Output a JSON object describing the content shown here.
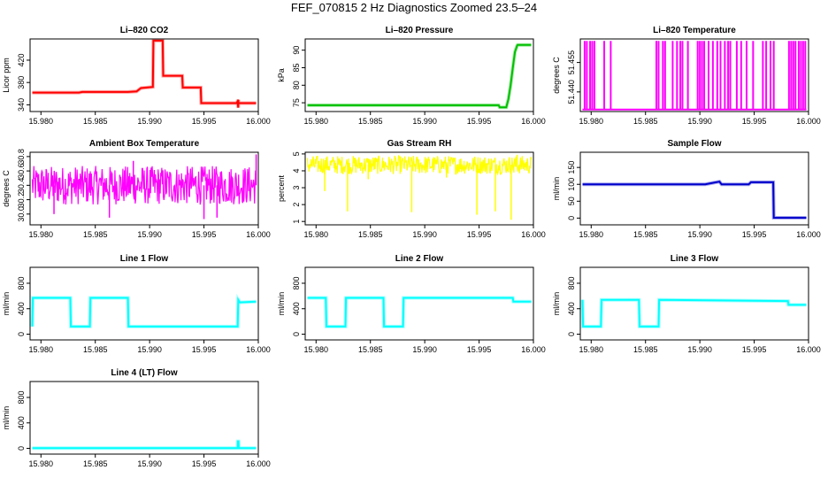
{
  "page_title": "FEF_070815  2 Hz Diagnostics Zoomed 23.5–24",
  "chart_data": [
    {
      "id": "co2",
      "type": "line",
      "title": "Li–820 CO2",
      "ylabel": "Licor ppm",
      "color": "#ff0000",
      "xlim": [
        15.979,
        16.0
      ],
      "ylim": [
        328,
        458
      ],
      "xticks": [
        "15.980",
        "15.985",
        "15.990",
        "15.995",
        "16.000"
      ],
      "yticks": [
        340,
        380,
        420
      ],
      "series": [
        {
          "x": [
            15.9792,
            15.9835,
            15.9838,
            15.988,
            15.9888,
            15.9892,
            15.9903,
            15.99035,
            15.9912,
            15.99125,
            15.993,
            15.99305,
            15.9947,
            15.99475,
            15.9981,
            15.99815,
            15.99818,
            15.998,
            15.9998
          ],
          "y": [
            362,
            362,
            363,
            363,
            364,
            370,
            372,
            455,
            455,
            392,
            392,
            371,
            371,
            343,
            343,
            335,
            349,
            343,
            343
          ]
        }
      ]
    },
    {
      "id": "pressure",
      "type": "line",
      "title": "Li–820 Pressure",
      "ylabel": "kPa",
      "color": "#00c000",
      "xlim": [
        15.979,
        16.0
      ],
      "ylim": [
        72.5,
        93.2
      ],
      "xticks": [
        "15.980",
        "15.985",
        "15.990",
        "15.995",
        "16.000"
      ],
      "yticks": [
        75,
        80,
        85,
        90
      ],
      "series": [
        {
          "x": [
            15.9792,
            15.9968,
            15.9969,
            15.9975,
            15.9977,
            15.9979,
            15.9981,
            15.9983,
            15.9985,
            15.99855,
            15.9998
          ],
          "y": [
            74.3,
            74.3,
            73.7,
            73.7,
            76,
            80,
            85,
            89.5,
            91.3,
            91.5,
            91.5
          ]
        }
      ]
    },
    {
      "id": "temperature",
      "type": "spikes",
      "title": "Li–820 Temperature",
      "ylabel": "degrees C",
      "color": "#ff00ff",
      "xlim": [
        15.979,
        16.0
      ],
      "ylim": [
        51.43,
        51.467
      ],
      "xticks": [
        "15.980",
        "15.985",
        "15.990",
        "15.995",
        "16.000"
      ],
      "yticks": [
        51.44,
        51.455
      ],
      "baseline": 51.431,
      "spike_top": 51.466,
      "spikes_x": [
        15.9794,
        15.9796,
        15.9799,
        15.9801,
        15.9803,
        15.9812,
        15.9818,
        15.986,
        15.9862,
        15.9866,
        15.9868,
        15.9875,
        15.9879,
        15.9882,
        15.9884,
        15.9889,
        15.9898,
        15.99,
        15.9902,
        15.9904,
        15.9908,
        15.9912,
        15.9916,
        15.9919,
        15.9923,
        15.9926,
        15.9928,
        15.9934,
        15.9938,
        15.9943,
        15.9949,
        15.9958,
        15.9961,
        15.9965,
        15.9968,
        15.9982,
        15.9984,
        15.9986,
        15.9988,
        15.9991,
        15.9993,
        15.9995,
        15.9997
      ]
    },
    {
      "id": "ambient",
      "type": "noise",
      "title": "Ambient Box Temperature",
      "ylabel": "degrees C",
      "color": "#ff00ff",
      "xlim": [
        15.979,
        16.0
      ],
      "ylim": [
        29.85,
        30.86
      ],
      "xticks": [
        "15.980",
        "15.985",
        "15.990",
        "15.995",
        "16.000"
      ],
      "yticks": [
        30.0,
        30.2,
        30.4,
        30.6,
        30.8
      ],
      "center": 30.4,
      "spread": 0.27,
      "downspikes": [
        [
          15.9812,
          30.0
        ],
        [
          15.9863,
          29.95
        ],
        [
          15.995,
          29.93
        ],
        [
          15.9962,
          29.95
        ]
      ],
      "upspikes": [
        [
          15.9998,
          30.83
        ],
        [
          15.9885,
          30.74
        ]
      ]
    },
    {
      "id": "rh",
      "type": "noise",
      "title": "Gas Stream RH",
      "ylabel": "percent",
      "color": "#ffff00",
      "xlim": [
        15.979,
        16.0
      ],
      "ylim": [
        0.8,
        5.1
      ],
      "xticks": [
        "15.980",
        "15.985",
        "15.990",
        "15.995",
        "16.000"
      ],
      "yticks": [
        1,
        2,
        3,
        4,
        5
      ],
      "center": 4.35,
      "spread": 0.55,
      "downspikes": [
        [
          15.9808,
          2.8
        ],
        [
          15.9829,
          1.6
        ],
        [
          15.9848,
          3.5
        ],
        [
          15.9888,
          1.55
        ],
        [
          15.992,
          3.6
        ],
        [
          15.9948,
          1.4
        ],
        [
          15.9965,
          1.6
        ],
        [
          15.99795,
          1.1
        ],
        [
          15.9982,
          3.9
        ]
      ],
      "upspikes": [
        [
          15.9985,
          4.95
        ]
      ]
    },
    {
      "id": "sample_flow",
      "type": "line",
      "title": "Sample Flow",
      "ylabel": "ml/min",
      "color": "#0000cc",
      "xlim": [
        15.979,
        16.0
      ],
      "ylim": [
        -20,
        195
      ],
      "xticks": [
        "15.980",
        "15.985",
        "15.990",
        "15.995",
        "16.000"
      ],
      "yticks": [
        0,
        50,
        100,
        150
      ],
      "series": [
        {
          "x": [
            15.9792,
            15.9905,
            15.9908,
            15.9918,
            15.992,
            15.9945,
            15.9947,
            15.99675,
            15.9968,
            15.9998
          ],
          "y": [
            100,
            100,
            102,
            108,
            100,
            100,
            106,
            106,
            1,
            1
          ]
        }
      ]
    },
    {
      "id": "line1",
      "type": "line",
      "title": "Line 1 Flow",
      "ylabel": "ml/min",
      "color": "#00ffff",
      "xlim": [
        15.979,
        16.0
      ],
      "ylim": [
        -90,
        1050
      ],
      "xticks": [
        "15.980",
        "15.985",
        "15.990",
        "15.995",
        "16.000"
      ],
      "yticks": [
        0,
        400,
        800
      ],
      "series": [
        {
          "x": [
            15.9792,
            15.97925,
            15.9827,
            15.98275,
            15.9845,
            15.98455,
            15.988,
            15.98805,
            15.9981,
            15.99815,
            15.9983,
            15.9998
          ],
          "y": [
            120,
            570,
            570,
            120,
            120,
            570,
            570,
            120,
            120,
            540,
            500,
            510
          ]
        }
      ]
    },
    {
      "id": "line2",
      "type": "line",
      "title": "Line 2 Flow",
      "ylabel": "ml/min",
      "color": "#00ffff",
      "xlim": [
        15.979,
        16.0
      ],
      "ylim": [
        -90,
        1050
      ],
      "xticks": [
        "15.980",
        "15.985",
        "15.990",
        "15.995",
        "16.000"
      ],
      "yticks": [
        0,
        400,
        800
      ],
      "series": [
        {
          "x": [
            15.9792,
            15.9809,
            15.98095,
            15.9827,
            15.98275,
            15.9862,
            15.98625,
            15.988,
            15.98805,
            15.9981,
            15.99815,
            15.9998
          ],
          "y": [
            570,
            570,
            120,
            120,
            570,
            570,
            120,
            120,
            570,
            570,
            510,
            510
          ]
        }
      ]
    },
    {
      "id": "line3",
      "type": "line",
      "title": "Line 3 Flow",
      "ylabel": "ml/min",
      "color": "#00ffff",
      "xlim": [
        15.979,
        16.0
      ],
      "ylim": [
        -90,
        1050
      ],
      "xticks": [
        "15.980",
        "15.985",
        "15.990",
        "15.995",
        "16.000"
      ],
      "yticks": [
        0,
        400,
        800
      ],
      "series": [
        {
          "x": [
            15.9792,
            15.97925,
            15.9809,
            15.98095,
            15.9844,
            15.98445,
            15.9862,
            15.98625,
            15.9981,
            15.99815,
            15.9998
          ],
          "y": [
            540,
            120,
            120,
            540,
            540,
            120,
            120,
            540,
            520,
            460,
            460
          ]
        }
      ]
    },
    {
      "id": "line4",
      "type": "line",
      "title": "Line 4 (LT) Flow",
      "ylabel": "ml/min",
      "color": "#00ffff",
      "xlim": [
        15.979,
        16.0
      ],
      "ylim": [
        -90,
        1050
      ],
      "xticks": [
        "15.980",
        "15.985",
        "15.990",
        "15.995",
        "16.000"
      ],
      "yticks": [
        0,
        400,
        800
      ],
      "series": [
        {
          "x": [
            15.9792,
            15.9981,
            15.99812,
            15.99818,
            15.9982,
            15.9998
          ],
          "y": [
            5,
            5,
            110,
            110,
            5,
            5
          ]
        }
      ]
    }
  ]
}
